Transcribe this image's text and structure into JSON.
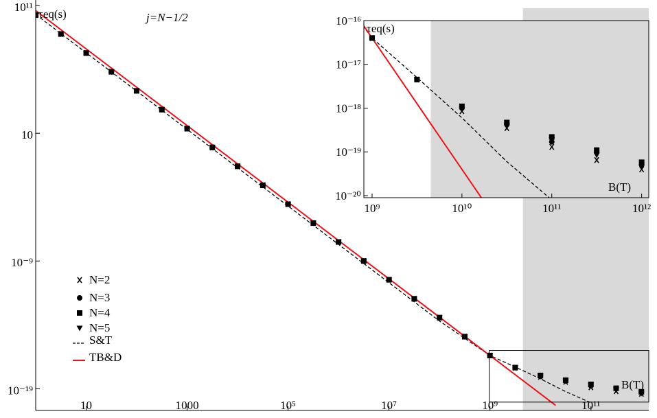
{
  "chart_data": {
    "type": "scatter",
    "title": "j=N−1/2",
    "ylabel": "τeq(s)",
    "xlabel": "B(T)",
    "log_x": true,
    "log_y": true,
    "xlim": [
      1,
      1400000000000.0
    ],
    "ylim": [
      2e-21,
      270000000000.0
    ],
    "xticks": [
      10,
      1000,
      {
        "value": 100000.0,
        "label": "10⁵"
      },
      {
        "value": 10000000.0,
        "label": "10⁷"
      },
      {
        "value": 1000000000.0,
        "label": "10⁹"
      },
      {
        "value": 100000000000.0,
        "label": "10¹¹"
      }
    ],
    "yticks": [
      {
        "value": 100000000000.0,
        "label": "10¹¹"
      },
      10,
      {
        "value": 1e-09,
        "label": "10⁻⁹"
      },
      {
        "value": 1e-19,
        "label": "10⁻¹⁹"
      }
    ],
    "shaded_from": 4500000000.0,
    "shade_color": "#d9d9d9",
    "x": [
      1,
      3.16,
      10,
      31.6,
      100,
      316,
      1000,
      3160,
      10000.0,
      31600.0,
      100000.0,
      316000.0,
      1000000.0,
      3160000.0,
      10000000.0,
      31600000.0,
      100000000.0,
      316000000.0,
      1000000000.0,
      3160000000.0,
      10000000000.0,
      31600000000.0,
      100000000000.0,
      316000000000.0,
      1000000000000.0
    ],
    "series": [
      {
        "name": "N=2",
        "marker": "x",
        "color": "#000000",
        "values": [
          18000000000.0,
          590000000.0,
          19000000.0,
          650000.0,
          21000.0,
          710,
          23,
          0.78,
          0.026,
          0.00085,
          2.8e-05,
          9.3e-07,
          3.1e-08,
          1e-09,
          3.4e-11,
          1.1e-12,
          3.7e-14,
          1.2e-15,
          4e-17,
          4.5e-18,
          8.5e-19,
          3.5e-19,
          1.3e-19,
          6.5e-20,
          4e-20
        ]
      },
      {
        "name": "N=3",
        "marker": "circle",
        "color": "#000000",
        "values": [
          18000000000.0,
          590000000.0,
          19000000.0,
          650000.0,
          21000.0,
          710,
          23,
          0.78,
          0.026,
          0.00085,
          2.8e-05,
          9.3e-07,
          3.1e-08,
          1e-09,
          3.4e-11,
          1.1e-12,
          3.7e-14,
          1.2e-15,
          4e-17,
          4.5e-18,
          1e-18,
          4.2e-19,
          1.7e-19,
          1e-19,
          5e-20
        ]
      },
      {
        "name": "N=4",
        "marker": "square",
        "color": "#000000",
        "values": [
          18000000000.0,
          590000000.0,
          19000000.0,
          650000.0,
          21000.0,
          710,
          23,
          0.78,
          0.026,
          0.00085,
          2.8e-05,
          9.3e-07,
          3.1e-08,
          1e-09,
          3.4e-11,
          1.1e-12,
          3.7e-14,
          1.2e-15,
          4e-17,
          4.5e-18,
          1.1e-18,
          4.7e-19,
          2.2e-19,
          1.1e-19,
          5.8e-20
        ]
      },
      {
        "name": "N=5",
        "marker": "triangle",
        "color": "#000000",
        "values": [
          18000000000.0,
          590000000.0,
          19000000.0,
          650000.0,
          21000.0,
          710,
          23,
          0.78,
          0.026,
          0.00085,
          2.8e-05,
          9.3e-07,
          3.1e-08,
          1e-09,
          3.4e-11,
          1.1e-12,
          3.7e-14,
          1.2e-15,
          4e-17,
          4.5e-18,
          9.5e-19,
          4e-19,
          1.9e-19,
          8.5e-20,
          4.5e-20
        ]
      }
    ],
    "lines": [
      {
        "name": "S&T",
        "color": "#000000",
        "dashed": true,
        "x": [
          1,
          100000000.0,
          1000000000.0,
          3160000000.0,
          10000000000.0,
          31600000000.0,
          100000000000.0
        ],
        "values": [
          20000000000.0,
          2e-14,
          4e-17,
          5e-18,
          6e-19,
          6e-20,
          8e-21
        ]
      },
      {
        "name": "TB&D",
        "color": "#e8141c",
        "dashed": false,
        "x": [
          1,
          20000000000.0
        ],
        "values": [
          40000000000.0,
          5e-21
        ]
      }
    ],
    "inset": {
      "ylabel": "τeq(s)",
      "xlabel": "B(T)",
      "xlim": [
        810000000.0,
        1200000000000.0
      ],
      "ylim": [
        9e-21,
        1e-16
      ],
      "xticks": [
        {
          "value": 1000000000.0,
          "label": "10⁹"
        },
        {
          "value": 10000000000.0,
          "label": "10¹⁰"
        },
        {
          "value": 100000000000.0,
          "label": "10¹¹"
        },
        {
          "value": 1000000000000.0,
          "label": "10¹²"
        }
      ],
      "yticks": [
        {
          "value": 1e-16,
          "label": "10⁻¹⁶"
        },
        {
          "value": 1e-17,
          "label": "10⁻¹⁷"
        },
        {
          "value": 1e-18,
          "label": "10⁻¹⁸"
        },
        {
          "value": 1e-19,
          "label": "10⁻¹⁹"
        },
        {
          "value": 1e-20,
          "label": "10⁻²⁰"
        }
      ]
    }
  }
}
